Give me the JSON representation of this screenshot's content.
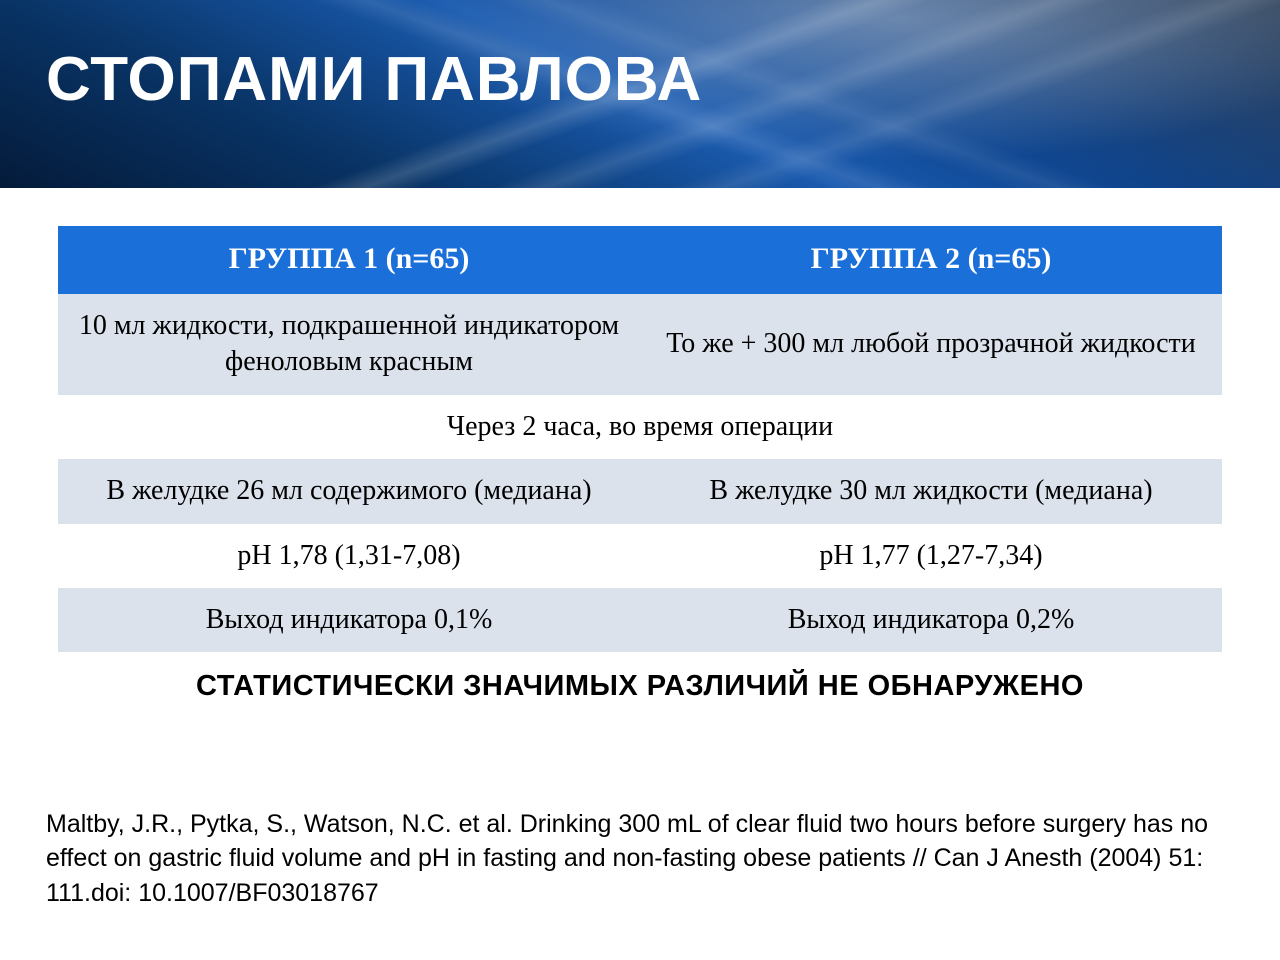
{
  "colors": {
    "header_bg": "#1a6fd8",
    "header_text": "#ffffff",
    "row_shade_bg": "#dbe2ec",
    "row_plain_bg": "#ffffff",
    "text": "#000000",
    "banner_gradient_from": "#041b3a",
    "banner_gradient_mid": "#1a5bb0",
    "banner_gradient_to": "#041b3a"
  },
  "typography": {
    "title_fontsize": 62,
    "th_fontsize": 30,
    "td_fontsize": 28,
    "conclusion_fontsize": 29,
    "citation_fontsize": 25,
    "serif_family": "Georgia / Times",
    "sans_family": "Arial / Tahoma"
  },
  "title": "СТОПАМИ ПАВЛОВА",
  "table": {
    "type": "table",
    "columns": [
      "ГРУППА 1 (n=65)",
      "ГРУППА 2 (n=65)"
    ],
    "rows": [
      {
        "style": "shade",
        "cells": [
          "10 мл жидкости, подкрашенной индикатором феноловым красным",
          "То же + 300 мл любой прозрачной жидкости"
        ]
      },
      {
        "style": "plain",
        "span": true,
        "cells": [
          "Через 2 часа, во время операции"
        ]
      },
      {
        "style": "shade",
        "cells": [
          "В желудке 26 мл содержимого (медиана)",
          "В желудке 30 мл жидкости (медиана)"
        ]
      },
      {
        "style": "plain",
        "cells": [
          "pH 1,78 (1,31-7,08)",
          "pH 1,77 (1,27-7,34)"
        ]
      },
      {
        "style": "shade",
        "cells": [
          "Выход индикатора 0,1%",
          "Выход индикатора 0,2%"
        ]
      }
    ],
    "conclusion": "СТАТИСТИЧЕСКИ ЗНАЧИМЫХ РАЗЛИЧИЙ НЕ ОБНАРУЖЕНО"
  },
  "citation": "Maltby, J.R., Pytka, S., Watson, N.C. et al. Drinking 300 mL of clear fluid two hours before surgery has no effect on gastric fluid volume and pH in fasting and non-fasting obese patients // Can J Anesth (2004) 51: 111.doi: 10.1007/BF03018767"
}
